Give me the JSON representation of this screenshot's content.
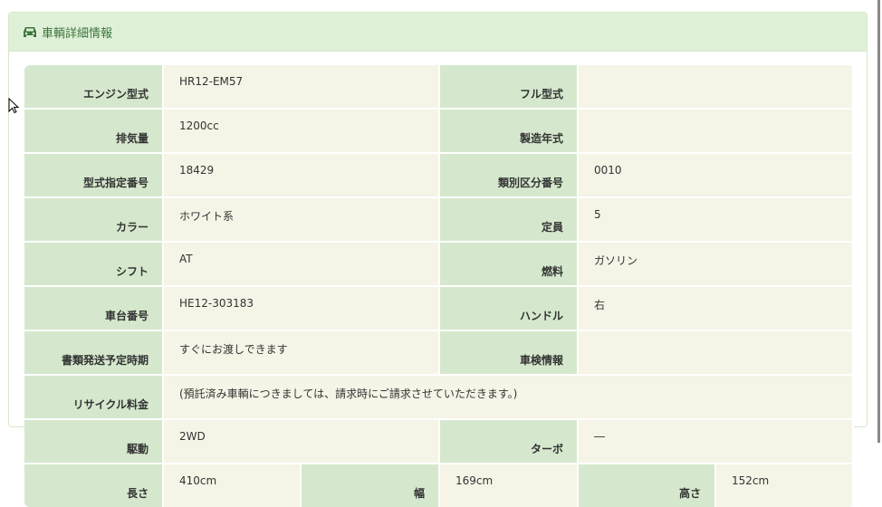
{
  "panel": {
    "title": "車輌詳細情報",
    "icon": "car-icon"
  },
  "rows": [
    [
      {
        "label": "エンジン型式",
        "value": "HR12-EM57"
      },
      {
        "label": "フル型式",
        "value": ""
      }
    ],
    [
      {
        "label": "排気量",
        "value": "1200cc"
      },
      {
        "label": "製造年式",
        "value": ""
      }
    ],
    [
      {
        "label": "型式指定番号",
        "value": "18429"
      },
      {
        "label": "類別区分番号",
        "value": "0010"
      }
    ],
    [
      {
        "label": "カラー",
        "value": "ホワイト系"
      },
      {
        "label": "定員",
        "value": "5"
      }
    ],
    [
      {
        "label": "シフト",
        "value": "AT"
      },
      {
        "label": "燃料",
        "value": "ガソリン"
      }
    ],
    [
      {
        "label": "車台番号",
        "value": "HE12-303183"
      },
      {
        "label": "ハンドル",
        "value": "右"
      }
    ],
    [
      {
        "label": "書類発送予定時期",
        "value": "すぐにお渡しできます"
      },
      {
        "label": "車検情報",
        "value": ""
      }
    ]
  ],
  "recycle": {
    "label": "リサイクル料金",
    "value": "(預託済み車輌につきましては、請求時にご請求させていただきます。)"
  },
  "drive": [
    {
      "label": "駆動",
      "value": "2WD"
    },
    {
      "label": "ターボ",
      "value": "―"
    }
  ],
  "dims": [
    {
      "label": "長さ",
      "value": "410cm"
    },
    {
      "label": "幅",
      "value": "169cm"
    },
    {
      "label": "高さ",
      "value": "152cm"
    }
  ],
  "colors": {
    "header_bg": "#dff0d8",
    "label_bg": "#d5e8cd",
    "value_bg": "#f6f4e6",
    "title": "#3c763d"
  }
}
